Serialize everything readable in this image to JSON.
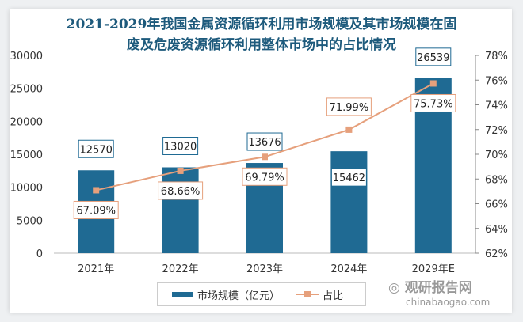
{
  "chart_data": {
    "type": "bar+line",
    "title": "2021-2029年我国金属资源循环利用市场规模及其市场规模在固废及危废资源循环利用整体市场中的占比情况",
    "title_lines": [
      "2021-2029年我国金属资源循环利用市场规模及其市场规模在固",
      "废及危废资源循环利用整体市场中的占比情况"
    ],
    "categories": [
      "2021年",
      "2022年",
      "2023年",
      "2024年",
      "2029年E"
    ],
    "series": [
      {
        "name": "市场规模（亿元）",
        "type": "bar",
        "axis": "left",
        "color": "#1f6a93",
        "values": [
          12570,
          13020,
          13676,
          15462,
          26539
        ],
        "labels": [
          "12570",
          "13020",
          "13676",
          "15462",
          "26539"
        ]
      },
      {
        "name": "占比",
        "type": "line",
        "axis": "right",
        "color": "#e6a07c",
        "values": [
          67.09,
          68.66,
          69.79,
          71.99,
          75.73
        ],
        "labels": [
          "67.09%",
          "68.66%",
          "69.79%",
          "71.99%",
          "75.73%"
        ]
      }
    ],
    "left_axis": {
      "ylim": [
        0,
        30000
      ],
      "ticks": [
        "0",
        "5000",
        "10000",
        "15000",
        "20000",
        "25000",
        "30000"
      ]
    },
    "right_axis": {
      "ylim": [
        62,
        78
      ],
      "ticks": [
        "62%",
        "64%",
        "66%",
        "68%",
        "70%",
        "72%",
        "74%",
        "76%",
        "78%"
      ]
    },
    "legend_position": "bottom",
    "grid": false
  },
  "watermark": {
    "name": "观研报告网",
    "url": "chinabaogao.com"
  }
}
